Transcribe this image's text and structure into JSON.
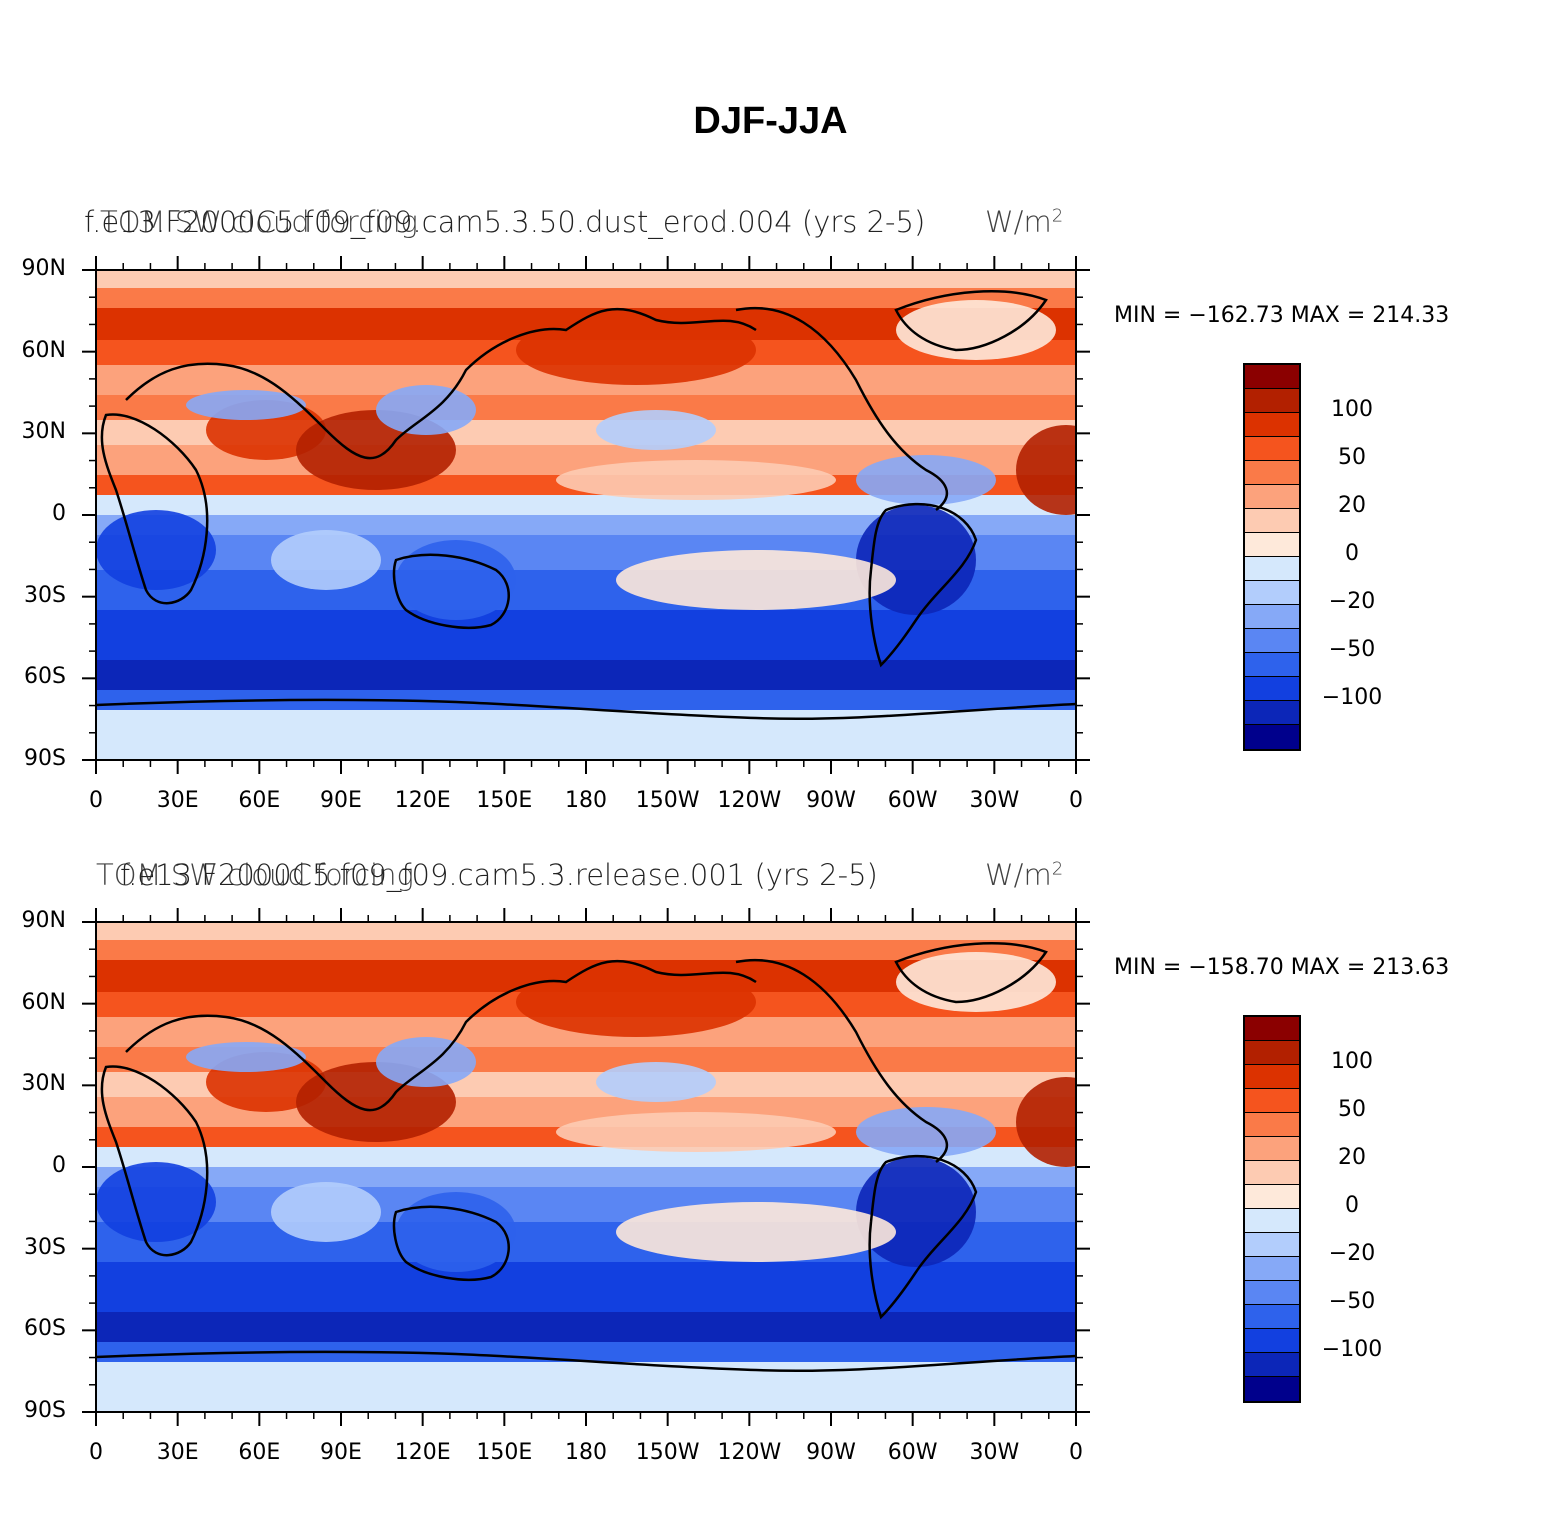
{
  "title": "DJF-JJA",
  "panels": [
    {
      "id": "top",
      "title_case": "f.e13.F2000C5.f09_f09.cam5.3.50.dust_erod.004 (yrs 2-5)",
      "title_variable": "TOM SW cloud forcing",
      "title_units": "W/m",
      "title_units_exp": "2",
      "min_max_label": "MIN = −162.73  MAX = 214.33"
    },
    {
      "id": "bottom",
      "title_case": "f.e13.F2000C5.f09_f09.cam5.3.release.001 (yrs 2-5)",
      "title_variable": "TOM SW cloud forcing",
      "title_units": "W/m",
      "title_units_exp": "2",
      "min_max_label": "MIN = −158.70  MAX = 213.63"
    }
  ],
  "chart_data": {
    "type": "heatmap",
    "projection": "cylindrical-equidistant",
    "lon_range": [
      0,
      360
    ],
    "lat_range": [
      -90,
      90
    ],
    "x_tick_labels": [
      "0",
      "30E",
      "60E",
      "90E",
      "120E",
      "150E",
      "180",
      "150W",
      "120W",
      "90W",
      "60W",
      "30W",
      "0"
    ],
    "y_tick_labels": [
      "90N",
      "60N",
      "30N",
      "0",
      "30S",
      "60S",
      "90S"
    ],
    "colorbar": {
      "labels": [
        "100",
        "50",
        "20",
        "0",
        "−20",
        "−50",
        "−100"
      ],
      "colors": [
        "#8b0000",
        "#b22000",
        "#dc3200",
        "#f5541e",
        "#fa7a48",
        "#fca27c",
        "#fdcbb2",
        "#fee9da",
        "#d5e8fc",
        "#b2cdfc",
        "#86a9f7",
        "#5a86f3",
        "#2e62ec",
        "#1240e0",
        "#0c26b8",
        "#00008c"
      ],
      "orientation": "vertical",
      "placement": "right"
    }
  }
}
